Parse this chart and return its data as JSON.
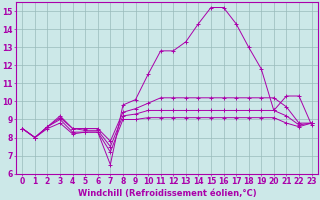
{
  "x": [
    0,
    1,
    2,
    3,
    4,
    5,
    6,
    7,
    8,
    9,
    10,
    11,
    12,
    13,
    14,
    15,
    16,
    17,
    18,
    19,
    20,
    21,
    22,
    23
  ],
  "line1": [
    8.5,
    8.0,
    8.5,
    8.8,
    8.2,
    8.3,
    8.3,
    6.5,
    9.8,
    10.1,
    11.5,
    12.8,
    12.8,
    13.3,
    14.3,
    15.2,
    15.2,
    14.3,
    13.0,
    11.8,
    9.5,
    10.3,
    10.3,
    8.7
  ],
  "line2": [
    8.5,
    8.0,
    8.6,
    9.0,
    8.3,
    8.3,
    8.3,
    7.2,
    9.0,
    9.0,
    9.1,
    9.1,
    9.1,
    9.1,
    9.1,
    9.1,
    9.1,
    9.1,
    9.1,
    9.1,
    9.1,
    8.8,
    8.6,
    8.8
  ],
  "line3": [
    8.5,
    8.0,
    8.6,
    9.1,
    8.5,
    8.4,
    8.4,
    7.5,
    9.2,
    9.3,
    9.5,
    9.5,
    9.5,
    9.5,
    9.5,
    9.5,
    9.5,
    9.5,
    9.5,
    9.5,
    9.5,
    9.2,
    8.7,
    8.8
  ],
  "line4": [
    8.5,
    8.0,
    8.6,
    9.2,
    8.5,
    8.5,
    8.5,
    7.8,
    9.4,
    9.6,
    9.9,
    10.2,
    10.2,
    10.2,
    10.2,
    10.2,
    10.2,
    10.2,
    10.2,
    10.2,
    10.2,
    9.7,
    8.8,
    8.8
  ],
  "color": "#aa00aa",
  "bg_color": "#cce8e8",
  "grid_color": "#99bbbb",
  "xlabel": "Windchill (Refroidissement éolien,°C)",
  "xlim_min": -0.5,
  "xlim_max": 23.5,
  "ylim_min": 6,
  "ylim_max": 15.5,
  "xticks": [
    0,
    1,
    2,
    3,
    4,
    5,
    6,
    7,
    8,
    9,
    10,
    11,
    12,
    13,
    14,
    15,
    16,
    17,
    18,
    19,
    20,
    21,
    22,
    23
  ],
  "yticks": [
    6,
    7,
    8,
    9,
    10,
    11,
    12,
    13,
    14,
    15
  ],
  "xlabel_fontsize": 6,
  "tick_fontsize": 5.5
}
